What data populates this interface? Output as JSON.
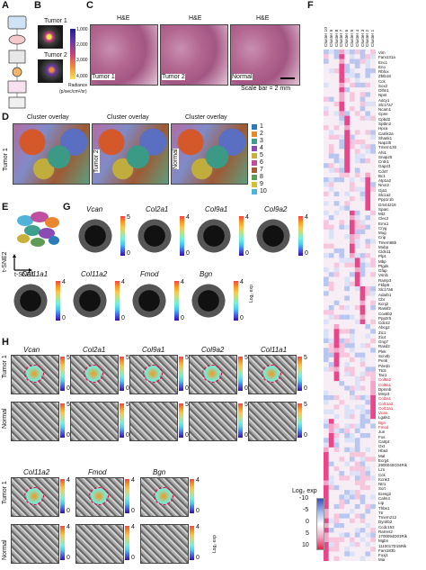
{
  "panels": {
    "A": "A",
    "B": "B",
    "C": "C",
    "D": "D",
    "E": "E",
    "F": "F",
    "G": "G",
    "H": "H"
  },
  "b": {
    "tumor1": "Tumor 1",
    "tumor2": "Tumor 2",
    "ticks": [
      "1,000",
      "2,000",
      "3,000",
      "4,000"
    ],
    "radiance": "Radiance",
    "radiance_unit": "(p/sec/cm²/sr)"
  },
  "c": {
    "titles": [
      "H&E",
      "H&E",
      "H&E"
    ],
    "samples": [
      "Tumor 1",
      "Tumor 2",
      "Normal"
    ],
    "scalebar": "Scale bar = 2 mm"
  },
  "d": {
    "titles": [
      "Cluster overlay",
      "Cluster overlay",
      "Cluster overlay"
    ],
    "samples": [
      "Tumor 1",
      "Tumor 2",
      "Normal"
    ],
    "legend": [
      "1",
      "2",
      "3",
      "4",
      "5",
      "6",
      "7",
      "8",
      "9",
      "10"
    ],
    "legend_colors": [
      "#2b7bb9",
      "#e8872d",
      "#3f9f8f",
      "#8a4bb5",
      "#c9b03a",
      "#c04fa2",
      "#a35c33",
      "#5c9c55",
      "#d4bf33",
      "#4fb3d9"
    ]
  },
  "e": {
    "ylab": "t-SNE2",
    "xlab": "t-SNE1"
  },
  "g": {
    "genes": [
      "Vcan",
      "Col2a1",
      "Col9a1",
      "Col9a2",
      "Col11a1",
      "Col11a2",
      "Fmod",
      "Bgn"
    ],
    "max": [
      "5",
      "4",
      "4",
      "4",
      "4",
      "4",
      "4",
      "4"
    ],
    "min": "0",
    "unit": "Log₂ exp"
  },
  "h": {
    "genes_row1": [
      "Vcan",
      "Col2a1",
      "Col9a1",
      "Col9a2",
      "Col11a1"
    ],
    "max_row1": [
      "5",
      "5",
      "5",
      "5",
      "5"
    ],
    "genes_row2": [
      "Col11a2",
      "Fmod",
      "Bgn"
    ],
    "max_row2": [
      "4",
      "4",
      "4"
    ],
    "min": "0",
    "row_labels": [
      "Tumor 1",
      "Normal",
      "Tumor 1",
      "Normal"
    ],
    "unit": "Log₂ exp"
  },
  "f": {
    "clusters": [
      "Cluster 10",
      "Cluster 9",
      "Cluster 8",
      "Cluster 7",
      "Cluster 6",
      "Cluster 5",
      "Cluster 4",
      "Cluster 3",
      "Cluster 2",
      "Cluster 1"
    ],
    "genes": [
      "Vim",
      "Fam131a",
      "Enc1",
      "Eno",
      "Rbfox",
      "Zbtb18",
      "Cck",
      "Sox2",
      "Olfm1",
      "Npnt",
      "Adcy1",
      "Slc17a7",
      "Ncam1",
      "Cpne",
      "Cpbd2",
      "Sptbn2",
      "Hpca",
      "Camk2a",
      "Shank1",
      "Nap1l5",
      "Tmem130",
      "Ahi1",
      "Snap25",
      "Cntn1",
      "Gap43",
      "Cd47",
      "Bc1",
      "Atp1a2",
      "Nrxn2",
      "Gja1",
      "Slc1a2",
      "Ppp1r1b",
      "Gm44218",
      "Sparc",
      "Mt2",
      "Clec2",
      "Emx1",
      "Cryg",
      "Mog",
      "Crip",
      "Tmem88b",
      "Mobp",
      "Cldn11",
      "Plp1",
      "Mbp",
      "Ptgds",
      "Gfap",
      "Vsnl1",
      "Ramp3",
      "Fkbp5",
      "Slc17a6",
      "Adarb1",
      "Cbr",
      "Kcnj2",
      "Rassf2",
      "Cox6b2",
      "Ppp2r5",
      "Cdc42",
      "Abcg2",
      "Zic1",
      "Zic4",
      "Gng7",
      "Rasd2",
      "Plek",
      "Scn4b",
      "Penk",
      "Pde1b",
      "Ttc5",
      "Tac1",
      "Col9a2",
      "Col9a1",
      "Dpmnb",
      "Mmp3",
      "Col2a1",
      "Col11a2",
      "Col11a1",
      "Vcan",
      "Lgals1",
      "Bgn",
      "Fmod",
      "Jun",
      "Fos",
      "Cartpt",
      "Oxt",
      "Hba1",
      "Mal",
      "Ecrg4",
      "2900040C04Rik",
      "Lzn",
      "Cck",
      "Kcnk3",
      "Ntr1",
      "Scrt",
      "Eresg2",
      "Calm4",
      "Ltp",
      "Thbs1",
      "Ttr",
      "Tmem212",
      "Dynlrb2",
      "Ccdc153",
      "Rarres2",
      "1700094D03Rik",
      "Mgbn",
      "1110017D15Rik",
      "Fam183b",
      "Foxj1",
      "Mia"
    ],
    "red_genes": [
      "Col9a2",
      "Col9a1",
      "Col2a1",
      "Col11a2",
      "Col11a1",
      "Vcan",
      "Bgn",
      "Fmod"
    ],
    "legend_title": "Log₂ exp",
    "legend_ticks": [
      "-10",
      "-5",
      "0",
      "5",
      "10"
    ]
  }
}
